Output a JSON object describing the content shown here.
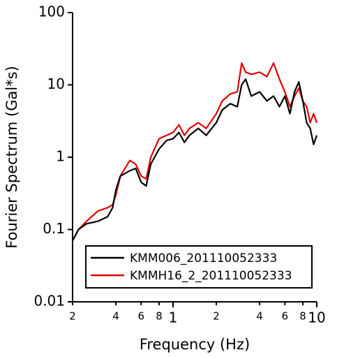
{
  "chart_data": {
    "type": "line",
    "log_x": true,
    "log_y": true,
    "xlabel": "Frequency (Hz)",
    "ylabel": "Fourier Spectrum (Gal*s)",
    "xlim": [
      0.2,
      10
    ],
    "ylim": [
      0.01,
      100
    ],
    "xticks": [
      {
        "value": 0.2,
        "label": "2"
      },
      {
        "value": 0.4,
        "label": "4"
      },
      {
        "value": 0.6,
        "label": "6"
      },
      {
        "value": 0.8,
        "label": "8"
      },
      1,
      2,
      4,
      6,
      8,
      10
    ],
    "yticks": [
      0.01,
      0.1,
      1,
      10,
      100
    ],
    "x": [
      0.2,
      0.22,
      0.25,
      0.3,
      0.35,
      0.38,
      0.4,
      0.43,
      0.5,
      0.55,
      0.6,
      0.65,
      0.7,
      0.8,
      0.9,
      1.0,
      1.1,
      1.2,
      1.3,
      1.5,
      1.7,
      2.0,
      2.2,
      2.5,
      2.8,
      3.0,
      3.2,
      3.5,
      4.0,
      4.5,
      5.0,
      5.5,
      6.0,
      6.5,
      7.0,
      7.5,
      8.0,
      8.5,
      9.0,
      9.5,
      10.0
    ],
    "series": [
      {
        "name": "KMM006_201110052333",
        "color": "#000000",
        "values": [
          0.07,
          0.1,
          0.12,
          0.13,
          0.15,
          0.2,
          0.35,
          0.55,
          0.65,
          0.7,
          0.45,
          0.4,
          0.8,
          1.3,
          1.7,
          1.8,
          2.2,
          1.6,
          2.0,
          2.5,
          2.0,
          3.0,
          4.5,
          5.5,
          5.0,
          10,
          12,
          7,
          8,
          6,
          7,
          5,
          7,
          4,
          8,
          11,
          6,
          3,
          2.5,
          1.5,
          2
        ]
      },
      {
        "name": "KMMH16_2_201110052333",
        "color": "#e00000",
        "values": [
          0.07,
          0.1,
          0.13,
          0.18,
          0.2,
          0.22,
          0.3,
          0.55,
          0.9,
          0.8,
          0.55,
          0.5,
          1.0,
          1.8,
          2.0,
          2.2,
          2.8,
          2.0,
          2.5,
          3.0,
          2.5,
          4.0,
          6.0,
          7.5,
          8,
          20,
          15,
          14,
          15,
          13,
          20,
          12,
          8,
          5,
          7,
          9,
          6,
          5,
          3,
          4,
          3
        ]
      }
    ],
    "legend": "lower-right"
  }
}
